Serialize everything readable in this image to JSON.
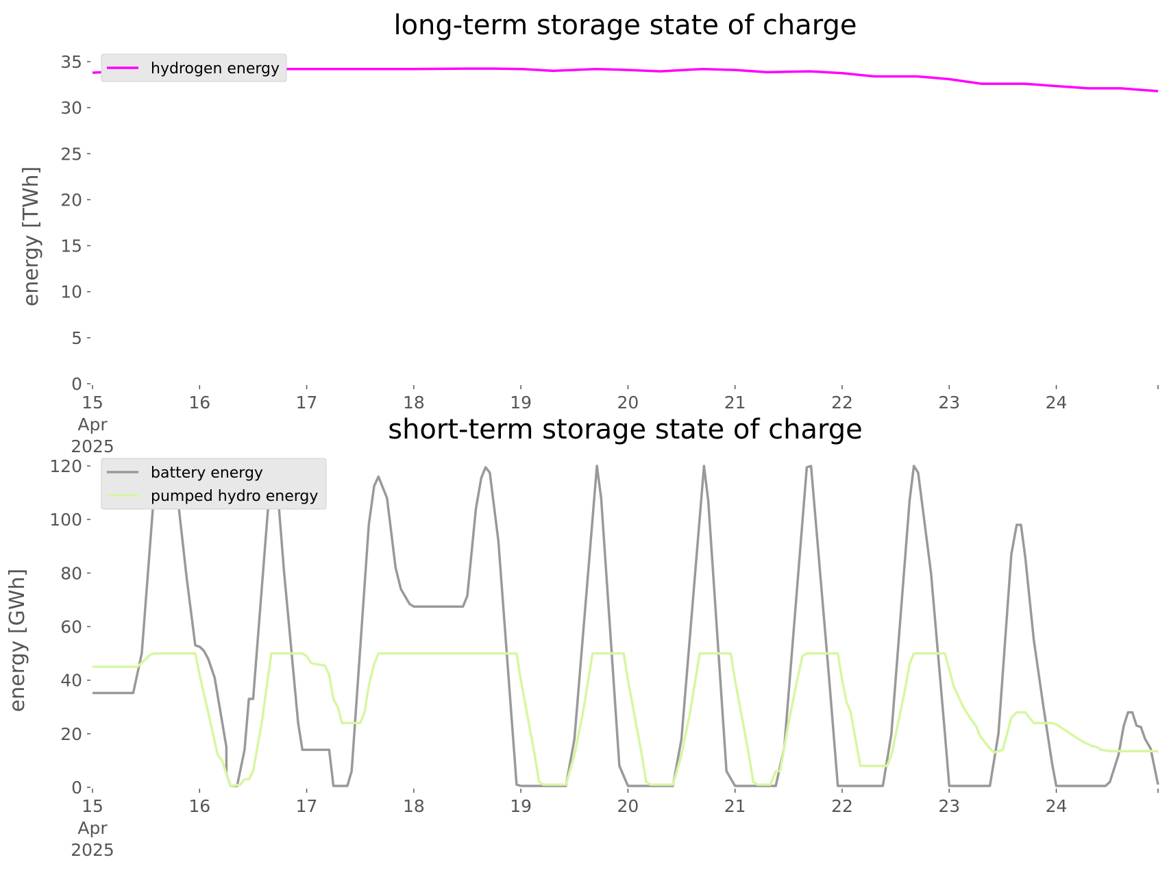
{
  "chart_data": [
    {
      "type": "line",
      "title": "long-term storage state of charge",
      "xlabel": "",
      "ylabel": "energy [TWh]",
      "x_unit": "day of April 2025",
      "xlim": [
        15,
        24.95
      ],
      "ylim": [
        0,
        35
      ],
      "x_ticks": [
        15,
        16,
        17,
        18,
        19,
        20,
        21,
        22,
        23,
        24
      ],
      "x_tick_labels": [
        "15",
        "16",
        "17",
        "18",
        "19",
        "20",
        "21",
        "22",
        "23",
        "24"
      ],
      "x_tick_sublabels": [
        "Apr",
        "2025"
      ],
      "y_ticks": [
        0,
        5,
        10,
        15,
        20,
        25,
        30,
        35
      ],
      "legend_position": "top-left",
      "grid": false,
      "series": [
        {
          "name": "hydrogen energy",
          "color": "#ff00ff",
          "points": [
            [
              15.0,
              33.8
            ],
            [
              15.5,
              34.1
            ],
            [
              16.0,
              34.2
            ],
            [
              16.5,
              34.2
            ],
            [
              17.0,
              34.2
            ],
            [
              17.5,
              34.2
            ],
            [
              18.0,
              34.2
            ],
            [
              18.5,
              34.25
            ],
            [
              18.75,
              34.25
            ],
            [
              19.0,
              34.2
            ],
            [
              19.3,
              34.0
            ],
            [
              19.7,
              34.2
            ],
            [
              20.0,
              34.1
            ],
            [
              20.3,
              33.95
            ],
            [
              20.7,
              34.2
            ],
            [
              21.0,
              34.1
            ],
            [
              21.3,
              33.85
            ],
            [
              21.7,
              33.95
            ],
            [
              22.0,
              33.75
            ],
            [
              22.3,
              33.4
            ],
            [
              22.7,
              33.4
            ],
            [
              23.0,
              33.1
            ],
            [
              23.3,
              32.6
            ],
            [
              23.7,
              32.6
            ],
            [
              24.0,
              32.35
            ],
            [
              24.3,
              32.1
            ],
            [
              24.6,
              32.1
            ],
            [
              24.95,
              31.8
            ]
          ]
        }
      ]
    },
    {
      "type": "line",
      "title": "short-term storage state of charge",
      "xlabel": "",
      "ylabel": "energy [GWh]",
      "x_unit": "day of April 2025",
      "xlim": [
        15,
        24.95
      ],
      "ylim": [
        0,
        120
      ],
      "x_ticks": [
        15,
        16,
        17,
        18,
        19,
        20,
        21,
        22,
        23,
        24
      ],
      "x_tick_labels": [
        "15",
        "16",
        "17",
        "18",
        "19",
        "20",
        "21",
        "22",
        "23",
        "24"
      ],
      "x_tick_sublabels": [
        "Apr",
        "2025"
      ],
      "y_ticks": [
        0,
        20,
        40,
        60,
        80,
        100,
        120
      ],
      "legend_position": "top-left",
      "grid": false,
      "series": [
        {
          "name": "battery energy",
          "color": "#999999",
          "points": [
            [
              15.0,
              35.2
            ],
            [
              15.38,
              35.2
            ],
            [
              15.46,
              50.0
            ],
            [
              15.58,
              112.5
            ],
            [
              15.67,
              113.5
            ],
            [
              15.71,
              118.0
            ],
            [
              15.79,
              110.0
            ],
            [
              15.88,
              78.0
            ],
            [
              15.96,
              53.0
            ],
            [
              16.0,
              52.5
            ],
            [
              16.04,
              51.0
            ],
            [
              16.08,
              48.0
            ],
            [
              16.14,
              41.0
            ],
            [
              16.25,
              15.0
            ],
            [
              16.25,
              5.0
            ],
            [
              16.29,
              0.5
            ],
            [
              16.35,
              0.5
            ],
            [
              16.42,
              14.0
            ],
            [
              16.46,
              33.0
            ],
            [
              16.5,
              33.0
            ],
            [
              16.67,
              120.0
            ],
            [
              16.71,
              120.0
            ],
            [
              16.79,
              80.0
            ],
            [
              16.92,
              24.0
            ],
            [
              16.96,
              14.0
            ],
            [
              17.21,
              14.0
            ],
            [
              17.25,
              0.5
            ],
            [
              17.38,
              0.5
            ],
            [
              17.42,
              6.0
            ],
            [
              17.58,
              98.0
            ],
            [
              17.63,
              112.5
            ],
            [
              17.67,
              116.0
            ],
            [
              17.75,
              108.0
            ],
            [
              17.83,
              82.0
            ],
            [
              17.88,
              74.0
            ],
            [
              17.96,
              68.5
            ],
            [
              18.0,
              67.5
            ],
            [
              18.33,
              67.5
            ],
            [
              18.46,
              67.5
            ],
            [
              18.5,
              71.5
            ],
            [
              18.58,
              104.0
            ],
            [
              18.63,
              115.5
            ],
            [
              18.67,
              119.5
            ],
            [
              18.71,
              117.5
            ],
            [
              18.79,
              92.0
            ],
            [
              18.96,
              1.0
            ],
            [
              19.0,
              0.5
            ],
            [
              19.42,
              0.5
            ],
            [
              19.5,
              18.0
            ],
            [
              19.71,
              120.0
            ],
            [
              19.75,
              108.0
            ],
            [
              19.92,
              8.0
            ],
            [
              20.0,
              0.5
            ],
            [
              20.42,
              0.5
            ],
            [
              20.5,
              18.0
            ],
            [
              20.71,
              120.0
            ],
            [
              20.75,
              107.0
            ],
            [
              20.92,
              6.0
            ],
            [
              21.0,
              0.5
            ],
            [
              21.38,
              0.5
            ],
            [
              21.46,
              15.0
            ],
            [
              21.67,
              119.5
            ],
            [
              21.71,
              120.0
            ],
            [
              21.88,
              40.0
            ],
            [
              21.96,
              0.5
            ],
            [
              22.38,
              0.5
            ],
            [
              22.46,
              20.0
            ],
            [
              22.63,
              107.0
            ],
            [
              22.67,
              120.0
            ],
            [
              22.71,
              117.5
            ],
            [
              22.83,
              80.0
            ],
            [
              22.96,
              20.0
            ],
            [
              23.0,
              0.5
            ],
            [
              23.38,
              0.5
            ],
            [
              23.46,
              20.0
            ],
            [
              23.58,
              87.0
            ],
            [
              23.63,
              98.0
            ],
            [
              23.67,
              98.0
            ],
            [
              23.71,
              86.0
            ],
            [
              23.79,
              55.0
            ],
            [
              23.88,
              30.0
            ],
            [
              23.96,
              9.0
            ],
            [
              24.0,
              0.5
            ],
            [
              24.46,
              0.5
            ],
            [
              24.5,
              2.0
            ],
            [
              24.58,
              12.0
            ],
            [
              24.63,
              23.0
            ],
            [
              24.67,
              28.0
            ],
            [
              24.71,
              28.0
            ],
            [
              24.75,
              23.0
            ],
            [
              24.79,
              22.5
            ],
            [
              24.83,
              18.0
            ],
            [
              24.88,
              14.5
            ],
            [
              24.95,
              1.0
            ]
          ]
        },
        {
          "name": "pumped hydro energy",
          "color": "#d6f7a1",
          "points": [
            [
              15.0,
              45.0
            ],
            [
              15.42,
              45.0
            ],
            [
              15.46,
              46.5
            ],
            [
              15.54,
              49.5
            ],
            [
              15.58,
              50.0
            ],
            [
              15.96,
              50.0
            ],
            [
              16.0,
              42.0
            ],
            [
              16.08,
              28.0
            ],
            [
              16.17,
              12.0
            ],
            [
              16.21,
              10.0
            ],
            [
              16.25,
              5.0
            ],
            [
              16.29,
              0.5
            ],
            [
              16.38,
              1.0
            ],
            [
              16.42,
              3.0
            ],
            [
              16.46,
              3.0
            ],
            [
              16.5,
              6.0
            ],
            [
              16.58,
              24.0
            ],
            [
              16.67,
              50.0
            ],
            [
              16.96,
              50.0
            ],
            [
              17.0,
              49.0
            ],
            [
              17.04,
              46.5
            ],
            [
              17.08,
              46.0
            ],
            [
              17.17,
              45.5
            ],
            [
              17.21,
              42.0
            ],
            [
              17.25,
              33.0
            ],
            [
              17.29,
              30.0
            ],
            [
              17.33,
              24.0
            ],
            [
              17.5,
              24.0
            ],
            [
              17.54,
              28.0
            ],
            [
              17.58,
              38.0
            ],
            [
              17.63,
              46.0
            ],
            [
              17.67,
              50.0
            ],
            [
              18.96,
              50.0
            ],
            [
              19.0,
              40.0
            ],
            [
              19.13,
              12.0
            ],
            [
              19.17,
              2.0
            ],
            [
              19.21,
              1.0
            ],
            [
              19.42,
              1.0
            ],
            [
              19.5,
              12.0
            ],
            [
              19.58,
              28.0
            ],
            [
              19.67,
              50.0
            ],
            [
              19.96,
              50.0
            ],
            [
              20.0,
              40.0
            ],
            [
              20.13,
              12.0
            ],
            [
              20.17,
              2.0
            ],
            [
              20.21,
              1.0
            ],
            [
              20.42,
              1.0
            ],
            [
              20.5,
              12.0
            ],
            [
              20.58,
              28.0
            ],
            [
              20.67,
              50.0
            ],
            [
              20.96,
              50.0
            ],
            [
              21.0,
              40.0
            ],
            [
              21.13,
              12.0
            ],
            [
              21.17,
              2.0
            ],
            [
              21.21,
              1.0
            ],
            [
              21.33,
              1.0
            ],
            [
              21.38,
              6.0
            ],
            [
              21.42,
              6.0
            ],
            [
              21.5,
              24.0
            ],
            [
              21.58,
              40.0
            ],
            [
              21.63,
              49.0
            ],
            [
              21.67,
              50.0
            ],
            [
              21.96,
              50.0
            ],
            [
              22.0,
              40.0
            ],
            [
              22.04,
              32.0
            ],
            [
              22.08,
              28.0
            ],
            [
              22.17,
              8.0
            ],
            [
              22.42,
              8.0
            ],
            [
              22.46,
              12.0
            ],
            [
              22.58,
              35.0
            ],
            [
              22.63,
              46.0
            ],
            [
              22.67,
              50.0
            ],
            [
              22.96,
              50.0
            ],
            [
              23.0,
              44.0
            ],
            [
              23.04,
              38.0
            ],
            [
              23.13,
              30.0
            ],
            [
              23.21,
              25.0
            ],
            [
              23.25,
              23.0
            ],
            [
              23.29,
              19.0
            ],
            [
              23.38,
              14.5
            ],
            [
              23.42,
              13.0
            ],
            [
              23.5,
              14.0
            ],
            [
              23.58,
              26.0
            ],
            [
              23.63,
              28.0
            ],
            [
              23.71,
              28.0
            ],
            [
              23.79,
              24.0
            ],
            [
              23.96,
              24.0
            ],
            [
              24.0,
              23.5
            ],
            [
              24.17,
              19.0
            ],
            [
              24.25,
              17.0
            ],
            [
              24.33,
              15.5
            ],
            [
              24.38,
              15.0
            ],
            [
              24.42,
              14.0
            ],
            [
              24.5,
              13.5
            ],
            [
              24.95,
              13.5
            ]
          ]
        }
      ]
    }
  ]
}
